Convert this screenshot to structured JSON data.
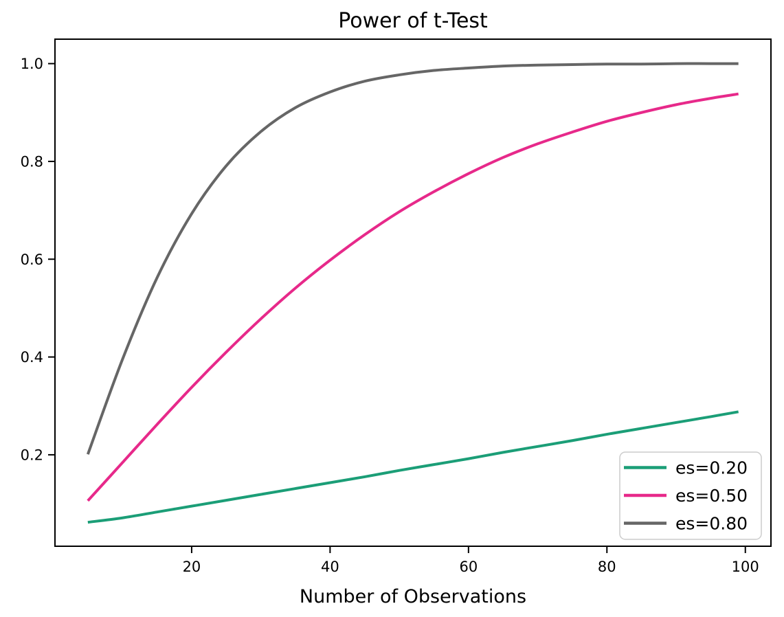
{
  "chart_data": {
    "type": "line",
    "title": "Power of t-Test",
    "xlabel": "Number of Observations",
    "ylabel": "",
    "grid": false,
    "legend_position": "lower right",
    "xlim": [
      0.25,
      103.7
    ],
    "ylim": [
      0.013,
      1.05
    ],
    "x_ticks": [
      20,
      40,
      60,
      80,
      100
    ],
    "y_ticks": [
      0.2,
      0.4,
      0.6,
      0.8,
      1.0
    ],
    "x": [
      5,
      10,
      15,
      20,
      25,
      30,
      35,
      40,
      45,
      50,
      55,
      60,
      65,
      70,
      75,
      80,
      85,
      90,
      95,
      99
    ],
    "series": [
      {
        "name": "es=0.20",
        "color": "#1b9e77",
        "values": [
          0.062,
          0.071,
          0.083,
          0.095,
          0.107,
          0.119,
          0.131,
          0.143,
          0.155,
          0.168,
          0.18,
          0.192,
          0.205,
          0.217,
          0.229,
          0.242,
          0.254,
          0.266,
          0.278,
          0.288
        ]
      },
      {
        "name": "es=0.50",
        "color": "#e7298a",
        "values": [
          0.106,
          0.184,
          0.262,
          0.338,
          0.41,
          0.478,
          0.541,
          0.598,
          0.65,
          0.697,
          0.738,
          0.775,
          0.808,
          0.836,
          0.86,
          0.882,
          0.9,
          0.916,
          0.929,
          0.938
        ]
      },
      {
        "name": "es=0.80",
        "color": "#666666",
        "values": [
          0.201,
          0.395,
          0.562,
          0.693,
          0.791,
          0.861,
          0.91,
          0.942,
          0.964,
          0.977,
          0.986,
          0.991,
          0.995,
          0.997,
          0.998,
          0.999,
          0.999,
          1.0,
          1.0,
          1.0
        ]
      }
    ],
    "legend_entries": [
      "es=0.20",
      "es=0.50",
      "es=0.80"
    ],
    "colors": {
      "spine": "#000000",
      "legend_border": "#cccccc",
      "background": "#ffffff"
    }
  }
}
